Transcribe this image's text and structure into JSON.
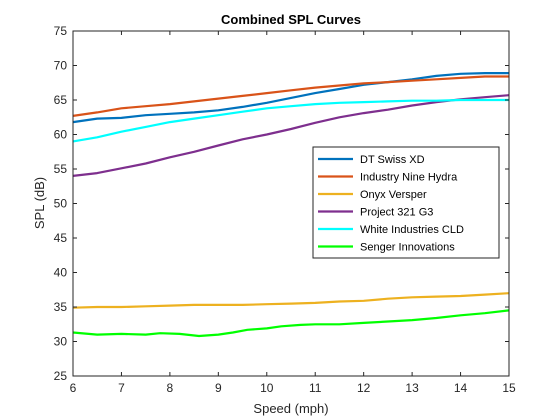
{
  "chart_data": {
    "type": "line",
    "title": "Combined SPL Curves",
    "xlabel": "Speed (mph)",
    "ylabel": "SPL (dB)",
    "xlim": [
      6,
      15
    ],
    "ylim": [
      25,
      75
    ],
    "xticks": [
      "6",
      "7",
      "8",
      "9",
      "10",
      "11",
      "12",
      "13",
      "14",
      "15"
    ],
    "yticks": [
      "25",
      "30",
      "35",
      "40",
      "45",
      "50",
      "55",
      "60",
      "65",
      "70",
      "75"
    ],
    "grid": false,
    "legend_position": "right-center",
    "series": [
      {
        "name": "DT Swiss XD",
        "color": "#0072BD",
        "points": [
          [
            6,
            61.8
          ],
          [
            6.5,
            62.3
          ],
          [
            7,
            62.4
          ],
          [
            7.5,
            62.8
          ],
          [
            8,
            63.0
          ],
          [
            8.5,
            63.2
          ],
          [
            9,
            63.5
          ],
          [
            9.5,
            64.0
          ],
          [
            10,
            64.6
          ],
          [
            10.5,
            65.3
          ],
          [
            11,
            66.0
          ],
          [
            11.5,
            66.6
          ],
          [
            12,
            67.2
          ],
          [
            12.5,
            67.6
          ],
          [
            13,
            68.0
          ],
          [
            13.5,
            68.5
          ],
          [
            14,
            68.8
          ],
          [
            14.5,
            68.9
          ],
          [
            15,
            68.9
          ]
        ]
      },
      {
        "name": "Industry Nine Hydra",
        "color": "#D95319",
        "points": [
          [
            6,
            62.7
          ],
          [
            6.5,
            63.2
          ],
          [
            7,
            63.8
          ],
          [
            7.5,
            64.1
          ],
          [
            8,
            64.4
          ],
          [
            8.5,
            64.8
          ],
          [
            9,
            65.2
          ],
          [
            9.5,
            65.6
          ],
          [
            10,
            66.0
          ],
          [
            10.5,
            66.4
          ],
          [
            11,
            66.8
          ],
          [
            11.5,
            67.1
          ],
          [
            12,
            67.4
          ],
          [
            12.5,
            67.6
          ],
          [
            13,
            67.8
          ],
          [
            13.5,
            68.0
          ],
          [
            14,
            68.2
          ],
          [
            14.5,
            68.4
          ],
          [
            15,
            68.4
          ]
        ]
      },
      {
        "name": "Onyx Versper",
        "color": "#EDB120",
        "points": [
          [
            6,
            34.9
          ],
          [
            6.5,
            35.0
          ],
          [
            7,
            35.0
          ],
          [
            7.5,
            35.1
          ],
          [
            8,
            35.2
          ],
          [
            8.5,
            35.3
          ],
          [
            9,
            35.3
          ],
          [
            9.5,
            35.3
          ],
          [
            10,
            35.4
          ],
          [
            10.5,
            35.5
          ],
          [
            11,
            35.6
          ],
          [
            11.5,
            35.8
          ],
          [
            12,
            35.9
          ],
          [
            12.5,
            36.2
          ],
          [
            13,
            36.4
          ],
          [
            13.5,
            36.5
          ],
          [
            14,
            36.6
          ],
          [
            14.5,
            36.8
          ],
          [
            15,
            37.0
          ]
        ]
      },
      {
        "name": "Project 321 G3",
        "color": "#7E2F8E",
        "points": [
          [
            6,
            54.0
          ],
          [
            6.5,
            54.4
          ],
          [
            7,
            55.1
          ],
          [
            7.5,
            55.8
          ],
          [
            8,
            56.7
          ],
          [
            8.5,
            57.5
          ],
          [
            9,
            58.4
          ],
          [
            9.5,
            59.3
          ],
          [
            10,
            60.0
          ],
          [
            10.5,
            60.8
          ],
          [
            11,
            61.7
          ],
          [
            11.5,
            62.5
          ],
          [
            12,
            63.1
          ],
          [
            12.5,
            63.6
          ],
          [
            13,
            64.2
          ],
          [
            13.5,
            64.7
          ],
          [
            14,
            65.1
          ],
          [
            14.5,
            65.4
          ],
          [
            15,
            65.7
          ]
        ]
      },
      {
        "name": "White Industries CLD",
        "color": "#00FFFF",
        "points": [
          [
            6,
            59.0
          ],
          [
            6.5,
            59.6
          ],
          [
            7,
            60.4
          ],
          [
            7.5,
            61.1
          ],
          [
            8,
            61.8
          ],
          [
            8.5,
            62.3
          ],
          [
            9,
            62.8
          ],
          [
            9.5,
            63.3
          ],
          [
            10,
            63.8
          ],
          [
            10.5,
            64.1
          ],
          [
            11,
            64.4
          ],
          [
            11.5,
            64.6
          ],
          [
            12,
            64.7
          ],
          [
            12.5,
            64.8
          ],
          [
            13,
            64.9
          ],
          [
            13.5,
            64.9
          ],
          [
            14,
            65.0
          ],
          [
            14.5,
            65.0
          ],
          [
            15,
            65.0
          ]
        ]
      },
      {
        "name": "Senger Innovations",
        "color": "#00FF00",
        "points": [
          [
            6,
            31.3
          ],
          [
            6.5,
            31.0
          ],
          [
            7,
            31.1
          ],
          [
            7.5,
            31.0
          ],
          [
            7.8,
            31.2
          ],
          [
            8.2,
            31.1
          ],
          [
            8.6,
            30.8
          ],
          [
            9,
            31.0
          ],
          [
            9.3,
            31.3
          ],
          [
            9.6,
            31.7
          ],
          [
            10,
            31.9
          ],
          [
            10.3,
            32.2
          ],
          [
            10.7,
            32.4
          ],
          [
            11,
            32.5
          ],
          [
            11.5,
            32.5
          ],
          [
            12,
            32.7
          ],
          [
            12.5,
            32.9
          ],
          [
            13,
            33.1
          ],
          [
            13.5,
            33.4
          ],
          [
            14,
            33.8
          ],
          [
            14.5,
            34.1
          ],
          [
            15,
            34.5
          ]
        ]
      }
    ]
  }
}
